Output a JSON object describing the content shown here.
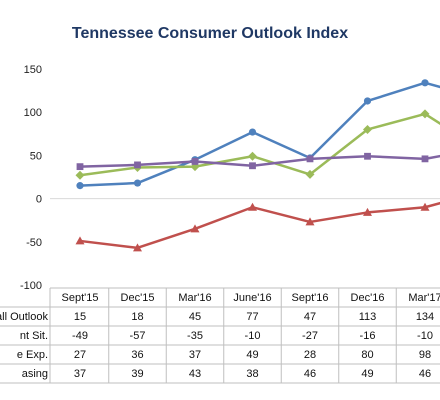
{
  "chart_data": {
    "type": "line",
    "title": "Tennessee Consumer Outlook Index",
    "categories": [
      "Sept'15",
      "Dec'15",
      "Mar'16",
      "June'16",
      "Sept'16",
      "Dec'16",
      "Mar'17"
    ],
    "ylim": [
      -100,
      150
    ],
    "yticks": [
      150,
      100,
      50,
      0,
      -50,
      -100
    ],
    "grid": false,
    "legend": "table-below",
    "series": [
      {
        "name": "all Outlook",
        "color": "#4f81bd",
        "marker": "circle",
        "values": [
          15,
          18,
          45,
          77,
          47,
          113,
          134
        ],
        "display": [
          "15",
          "18",
          "45",
          "77",
          "47",
          "113",
          "134"
        ],
        "trail": 128
      },
      {
        "name": "nt Sit.",
        "color": "#c0504d",
        "marker": "triangle",
        "values": [
          -49,
          -57,
          -35,
          -10,
          -27,
          -16,
          -10
        ],
        "display": [
          "-49",
          "-57",
          "-35",
          "-10",
          "-27",
          "-16",
          "-10"
        ],
        "trail": -4
      },
      {
        "name": "e Exp.",
        "color": "#9bbb59",
        "marker": "diamond",
        "values": [
          27,
          36,
          37,
          49,
          28,
          80,
          98
        ],
        "display": [
          "27",
          "36",
          "37",
          "49",
          "28",
          "80",
          "98"
        ],
        "trail": 84
      },
      {
        "name": "asing",
        "color": "#8064a2",
        "marker": "square",
        "values": [
          37,
          39,
          43,
          38,
          46,
          49,
          46
        ],
        "display": [
          "37",
          "39",
          "43",
          "38",
          "46",
          "49",
          "46"
        ],
        "trail": 50
      }
    ]
  }
}
